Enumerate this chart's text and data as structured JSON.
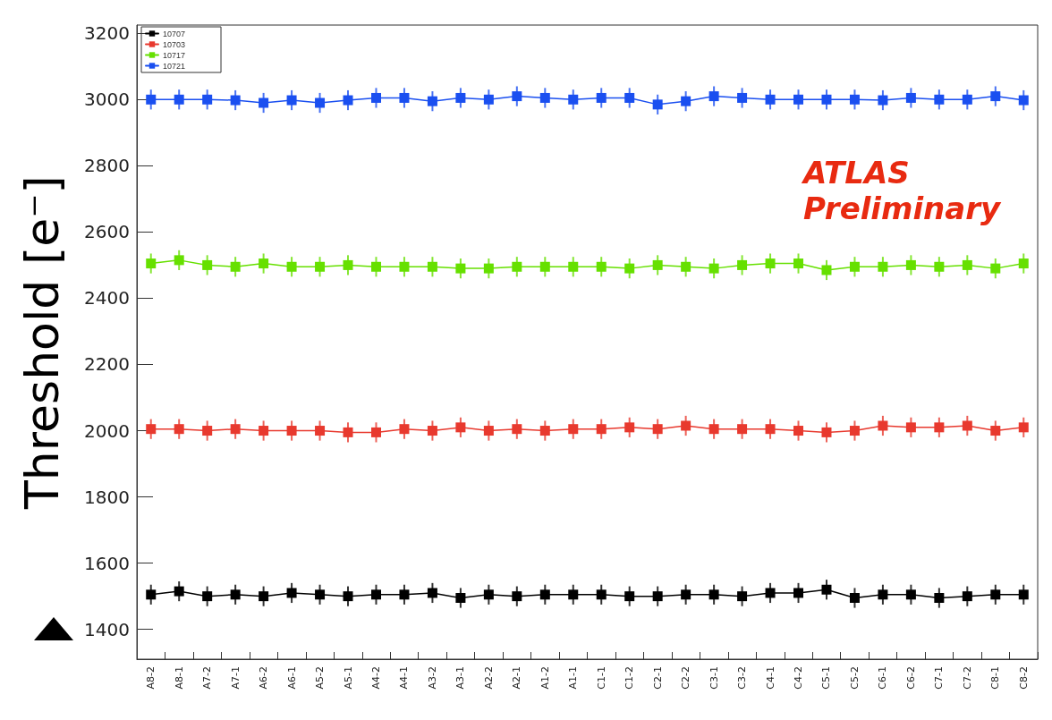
{
  "chart_data": {
    "type": "line",
    "ylabel": "Threshold [e⁻]",
    "annotations": [
      "ATLAS Preliminary"
    ],
    "categories": [
      "A8-2",
      "A8-1",
      "A7-2",
      "A7-1",
      "A6-2",
      "A6-1",
      "A5-2",
      "A5-1",
      "A4-2",
      "A4-1",
      "A3-2",
      "A3-1",
      "A2-2",
      "A2-1",
      "A1-2",
      "A1-1",
      "C1-1",
      "C1-2",
      "C2-1",
      "C2-2",
      "C3-1",
      "C3-2",
      "C4-1",
      "C4-2",
      "C5-1",
      "C5-2",
      "C6-1",
      "C6-2",
      "C7-1",
      "C7-2",
      "C8-1",
      "C8-2"
    ],
    "series": [
      {
        "name": "10707",
        "color": "#000000",
        "values": [
          1505,
          1515,
          1500,
          1505,
          1500,
          1510,
          1505,
          1500,
          1505,
          1505,
          1510,
          1495,
          1505,
          1500,
          1505,
          1505,
          1505,
          1500,
          1500,
          1505,
          1505,
          1500,
          1510,
          1510,
          1520,
          1495,
          1505,
          1505,
          1495,
          1500,
          1505,
          1505
        ],
        "errors": [
          30,
          30,
          30,
          30,
          30,
          30,
          30,
          30,
          30,
          30,
          30,
          30,
          30,
          30,
          30,
          30,
          30,
          30,
          30,
          30,
          30,
          30,
          30,
          30,
          30,
          30,
          30,
          30,
          30,
          30,
          30,
          30
        ]
      },
      {
        "name": "10703",
        "color": "#e8392e",
        "values": [
          2005,
          2005,
          2000,
          2005,
          2000,
          2000,
          2000,
          1995,
          1995,
          2005,
          2000,
          2010,
          2000,
          2005,
          2000,
          2005,
          2005,
          2010,
          2005,
          2015,
          2005,
          2005,
          2005,
          2000,
          1995,
          2000,
          2015,
          2010,
          2010,
          2015,
          2000,
          2010
        ],
        "errors": [
          30,
          30,
          30,
          30,
          30,
          30,
          30,
          30,
          30,
          30,
          30,
          30,
          30,
          30,
          30,
          30,
          30,
          30,
          30,
          30,
          30,
          30,
          30,
          30,
          30,
          30,
          30,
          30,
          30,
          30,
          30,
          30
        ]
      },
      {
        "name": "10717",
        "color": "#66e000",
        "values": [
          2505,
          2515,
          2500,
          2495,
          2505,
          2495,
          2495,
          2500,
          2495,
          2495,
          2495,
          2490,
          2490,
          2495,
          2495,
          2495,
          2495,
          2490,
          2500,
          2495,
          2490,
          2500,
          2505,
          2505,
          2485,
          2495,
          2495,
          2500,
          2495,
          2500,
          2490,
          2505
        ],
        "errors": [
          30,
          30,
          30,
          30,
          30,
          30,
          30,
          30,
          30,
          30,
          30,
          30,
          30,
          30,
          30,
          30,
          30,
          30,
          30,
          30,
          30,
          30,
          30,
          30,
          30,
          30,
          30,
          30,
          30,
          30,
          30,
          30
        ]
      },
      {
        "name": "10721",
        "color": "#1a4ff0",
        "values": [
          3000,
          3000,
          3000,
          2998,
          2990,
          2998,
          2990,
          2998,
          3005,
          3005,
          2995,
          3005,
          3000,
          3010,
          3005,
          3000,
          3005,
          3005,
          2985,
          2995,
          3010,
          3005,
          3000,
          3000,
          3000,
          3000,
          2998,
          3005,
          3000,
          3000,
          3010,
          2998
        ],
        "errors": [
          30,
          30,
          30,
          30,
          30,
          30,
          30,
          30,
          30,
          30,
          30,
          30,
          30,
          30,
          30,
          30,
          30,
          30,
          30,
          30,
          30,
          30,
          30,
          30,
          30,
          30,
          30,
          30,
          30,
          30,
          30,
          30
        ]
      }
    ],
    "ylim": [
      1310,
      3225
    ],
    "yticks": [
      1400,
      1600,
      1800,
      2000,
      2200,
      2400,
      2600,
      2800,
      3000,
      3200
    ],
    "grid": false,
    "legend": "top left",
    "marker": "square",
    "line_style": "solid"
  }
}
